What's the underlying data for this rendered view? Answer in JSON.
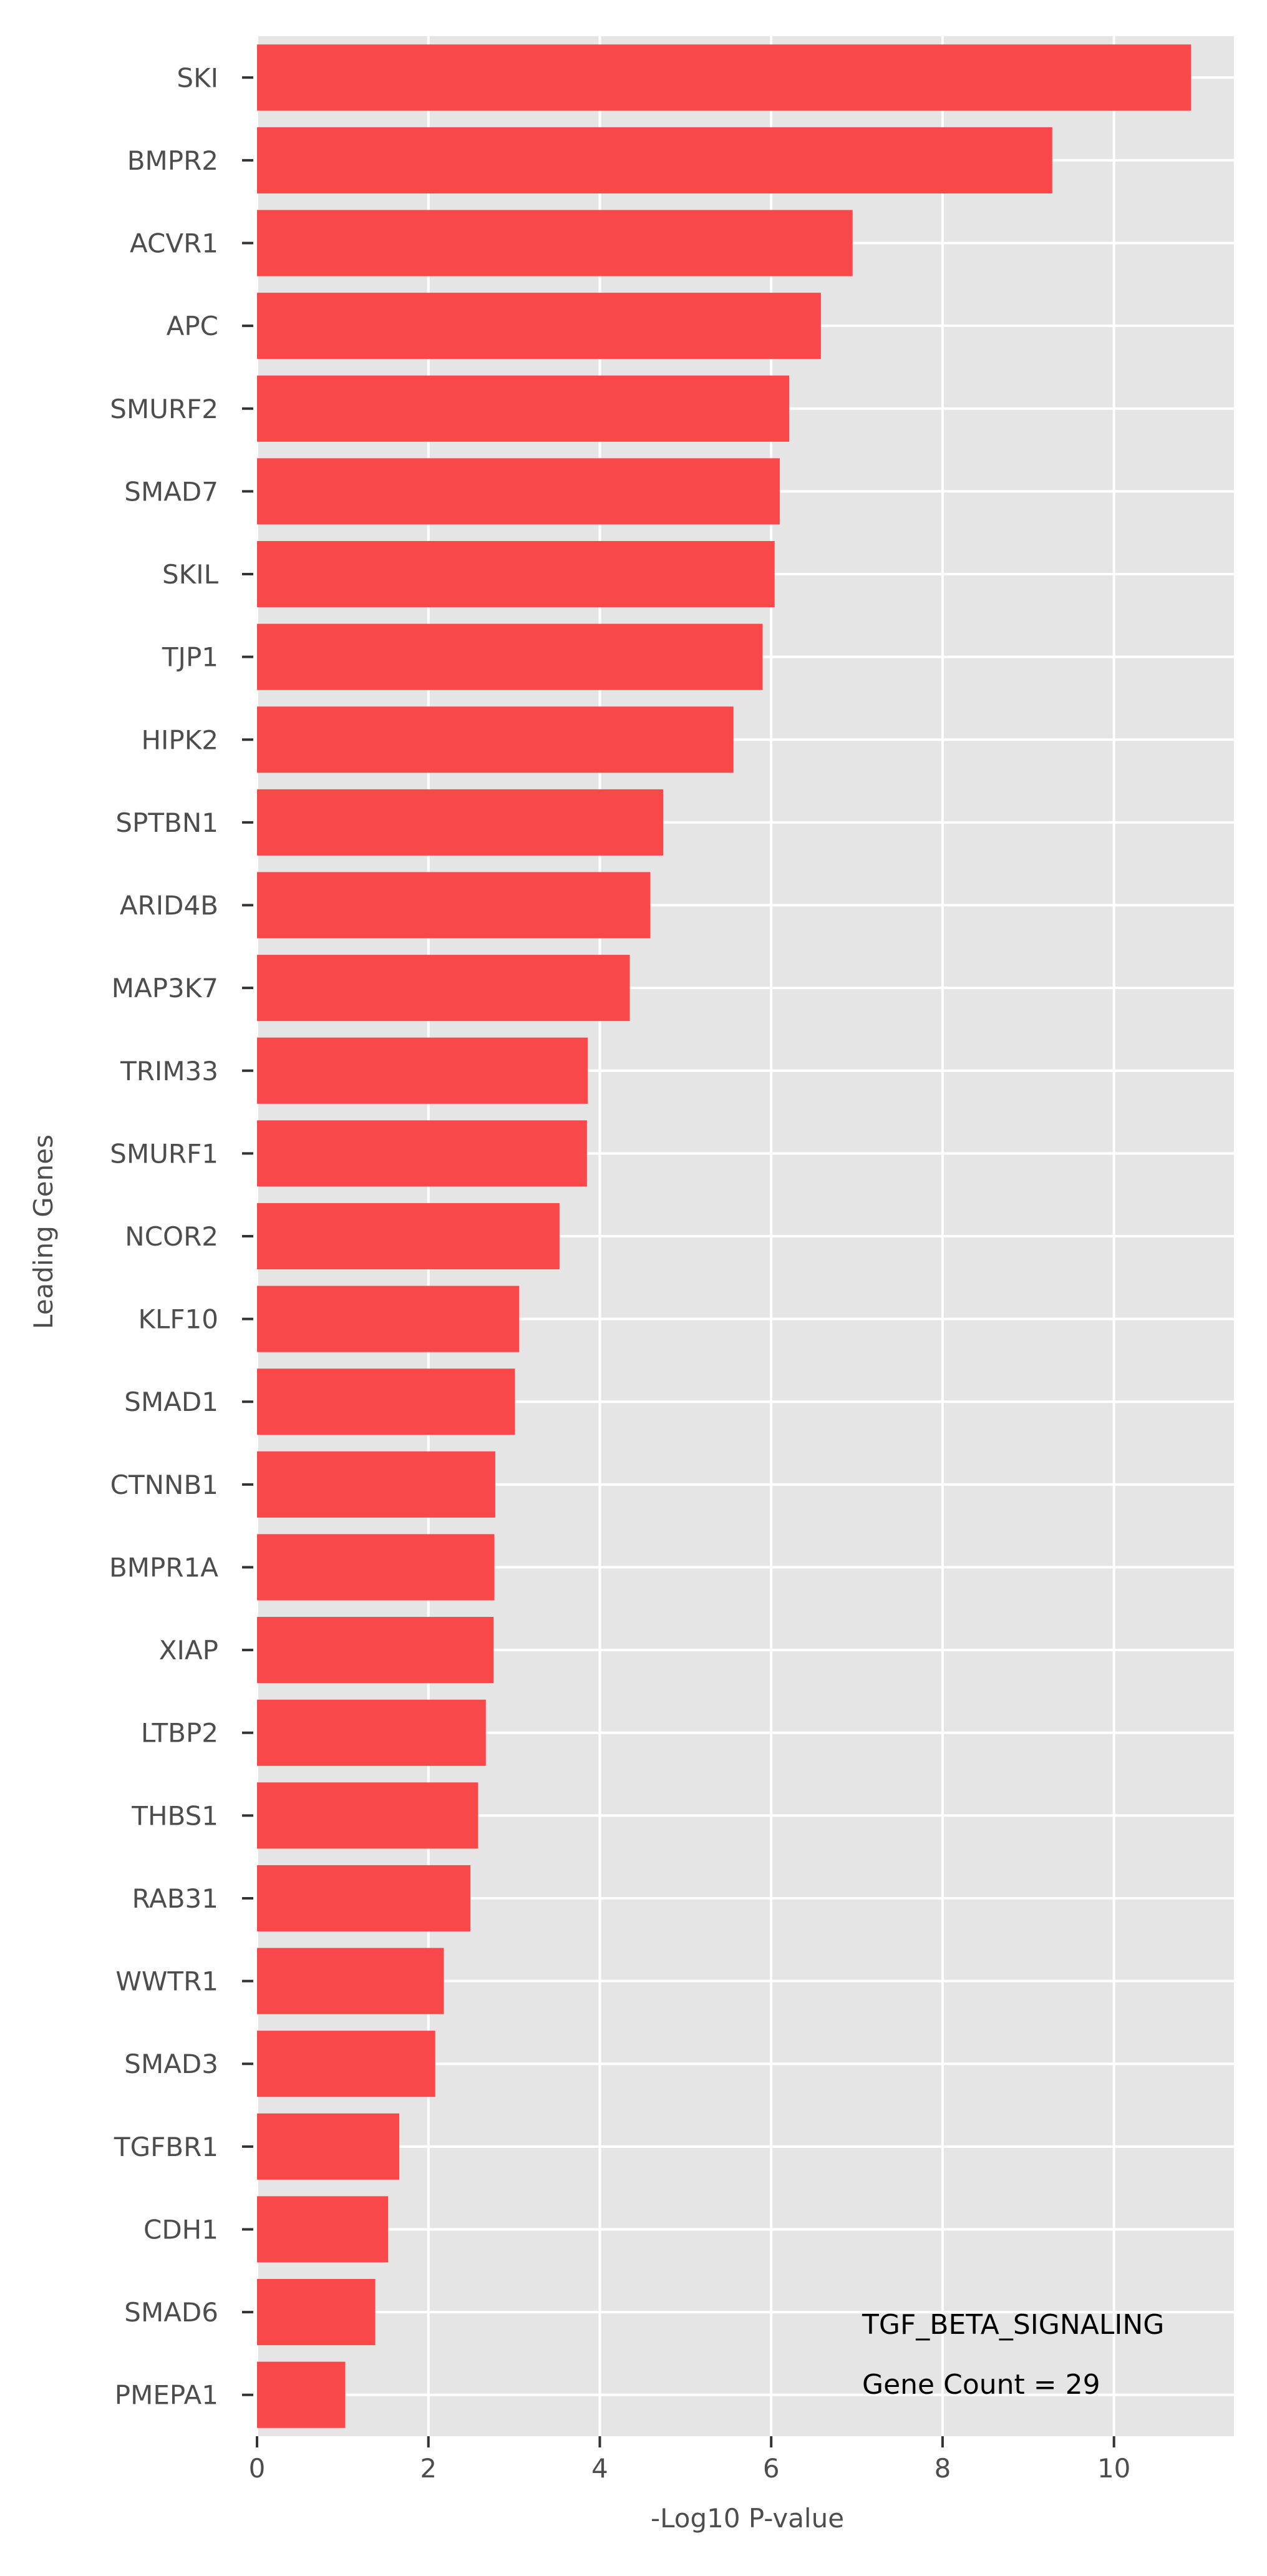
{
  "chart_data": {
    "type": "bar",
    "orientation": "horizontal",
    "title": "",
    "xlabel": "-Log10 P-value",
    "ylabel": "Leading Genes",
    "xlim": [
      0,
      11.4
    ],
    "xticks": [
      0,
      2,
      4,
      6,
      8,
      10
    ],
    "grid": true,
    "categories": [
      "SKI",
      "BMPR2",
      "ACVR1",
      "APC",
      "SMURF2",
      "SMAD7",
      "SKIL",
      "TJP1",
      "HIPK2",
      "SPTBN1",
      "ARID4B",
      "MAP3K7",
      "TRIM33",
      "SMURF1",
      "NCOR2",
      "KLF10",
      "SMAD1",
      "CTNNB1",
      "BMPR1A",
      "XIAP",
      "LTBP2",
      "THBS1",
      "RAB31",
      "WWTR1",
      "SMAD3",
      "TGFBR1",
      "CDH1",
      "SMAD6",
      "PMEPA1"
    ],
    "values": [
      10.9,
      9.28,
      6.95,
      6.58,
      6.21,
      6.1,
      6.04,
      5.9,
      5.56,
      4.74,
      4.59,
      4.35,
      3.86,
      3.85,
      3.53,
      3.06,
      3.01,
      2.78,
      2.77,
      2.76,
      2.67,
      2.58,
      2.49,
      2.18,
      2.08,
      1.66,
      1.53,
      1.38,
      1.03
    ],
    "bar_color": "#f8484a",
    "background": "#e5e5e5",
    "grid_color": "#ffffff",
    "annotations": [
      "TGF_BETA_SIGNALING",
      "Gene Count = 29"
    ]
  }
}
